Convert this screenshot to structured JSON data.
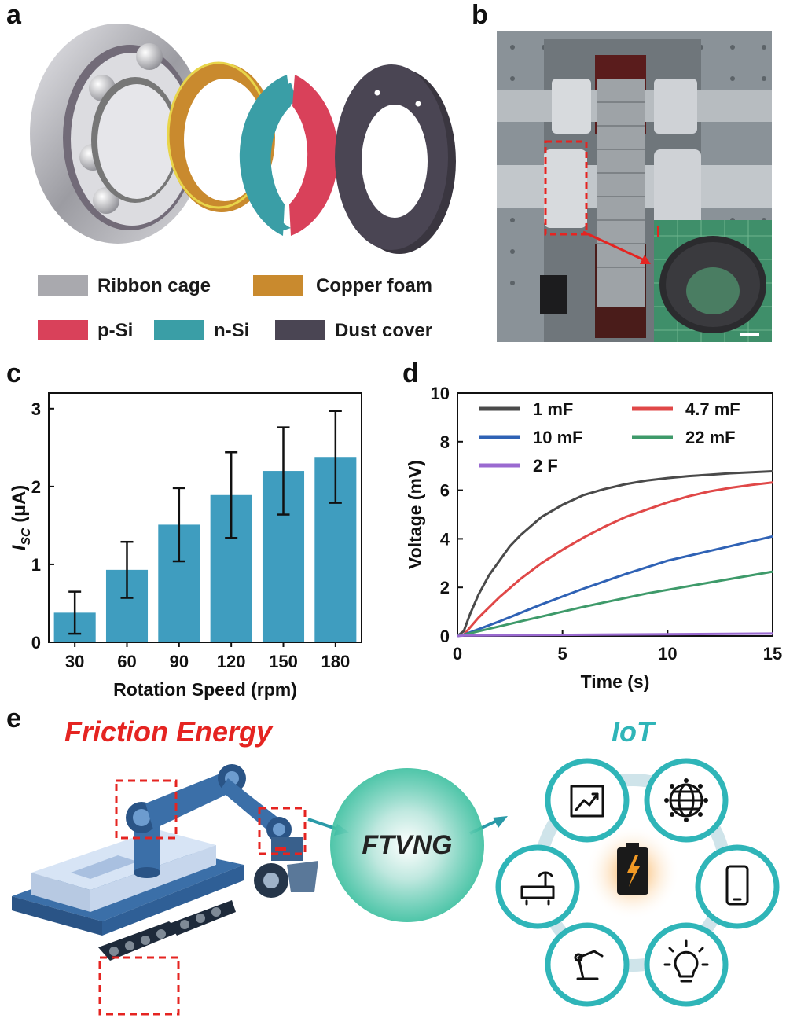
{
  "panels": {
    "a": "a",
    "b": "b",
    "c": "c",
    "d": "d",
    "e": "e"
  },
  "legend_a": [
    {
      "label": "Ribbon cage",
      "color": "#a9a9ae"
    },
    {
      "label": "Copper foam",
      "color": "#c98a2e"
    },
    {
      "label": "p-Si",
      "color": "#d9415a"
    },
    {
      "label": "n-Si",
      "color": "#3a9ea6"
    },
    {
      "label": "Dust cover",
      "color": "#4a4553"
    }
  ],
  "chart_data": [
    {
      "type": "bar",
      "categories": [
        "30",
        "60",
        "90",
        "120",
        "150",
        "180"
      ],
      "values": [
        0.38,
        0.93,
        1.51,
        1.89,
        2.2,
        2.38
      ],
      "errors": [
        0.27,
        0.36,
        0.47,
        0.55,
        0.56,
        0.59
      ],
      "xlabel": "Rotation Speed (rpm)",
      "ylabel_main": "I",
      "ylabel_sub": "SC",
      "ylabel_unit": " (μA)",
      "ylim": [
        0,
        3.2
      ],
      "yticks": [
        "0",
        "1",
        "2",
        "3"
      ],
      "color": "#3f9dbf"
    },
    {
      "type": "line",
      "xlabel": "Time (s)",
      "ylabel": "Voltage (mV)",
      "xlim": [
        0,
        15
      ],
      "ylim": [
        0,
        10
      ],
      "xticks": [
        "0",
        "5",
        "10",
        "15"
      ],
      "yticks": [
        "0",
        "2",
        "4",
        "6",
        "8",
        "10"
      ],
      "series": [
        {
          "name": "1 mF",
          "color": "#4a4a4a",
          "x": [
            0.3,
            0.6,
            1,
            1.5,
            2,
            2.5,
            3,
            4,
            5,
            6,
            7,
            8,
            9,
            10,
            11,
            12,
            13,
            14,
            15
          ],
          "y": [
            0.2,
            0.9,
            1.7,
            2.5,
            3.1,
            3.7,
            4.15,
            4.9,
            5.4,
            5.8,
            6.05,
            6.25,
            6.4,
            6.5,
            6.58,
            6.64,
            6.7,
            6.74,
            6.78
          ]
        },
        {
          "name": "4.7 mF",
          "color": "#e04848",
          "x": [
            0.3,
            1,
            2,
            3,
            4,
            5,
            6,
            7,
            8,
            9,
            10,
            11,
            12,
            13,
            14,
            15
          ],
          "y": [
            0.05,
            0.75,
            1.6,
            2.35,
            3.0,
            3.55,
            4.05,
            4.5,
            4.9,
            5.2,
            5.5,
            5.75,
            5.95,
            6.1,
            6.22,
            6.32
          ]
        },
        {
          "name": "10 mF",
          "color": "#2f62b5",
          "x": [
            0.3,
            2,
            4,
            6,
            8,
            10,
            12,
            15
          ],
          "y": [
            0.05,
            0.6,
            1.3,
            1.95,
            2.55,
            3.1,
            3.5,
            4.1
          ]
        },
        {
          "name": "22 mF",
          "color": "#3e9a6a",
          "x": [
            0.3,
            3,
            6,
            9,
            12,
            15
          ],
          "y": [
            0.05,
            0.6,
            1.2,
            1.75,
            2.2,
            2.65
          ]
        },
        {
          "name": "2 F",
          "color": "#9a6ad0",
          "x": [
            0.3,
            15
          ],
          "y": [
            0.02,
            0.1
          ]
        }
      ]
    }
  ],
  "panel_e": {
    "left_title": "Friction Energy",
    "right_title": "IoT",
    "center": "FTVNG",
    "left_color": "#e52421",
    "right_color": "#2fb5b8",
    "icons": [
      "chart-icon",
      "globe-icon",
      "router-icon",
      "battery-icon",
      "phone-icon",
      "robot-arm-icon",
      "bulb-icon"
    ]
  }
}
